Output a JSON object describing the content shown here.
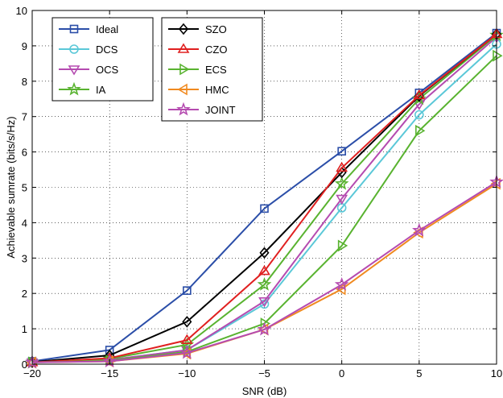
{
  "chart_data": {
    "type": "line",
    "xlabel": "SNR (dB)",
    "ylabel": "Achievable sumrate (bits/s/Hz)",
    "xlim": [
      -20,
      10
    ],
    "ylim": [
      0,
      10
    ],
    "xticks": [
      -20,
      -15,
      -10,
      -5,
      0,
      5,
      10
    ],
    "yticks": [
      0,
      1,
      2,
      3,
      4,
      5,
      6,
      7,
      8,
      9,
      10
    ],
    "xtick_labels": [
      "−20",
      "−15",
      "−10",
      "−5",
      "0",
      "5",
      "10"
    ],
    "ytick_labels": [
      "0",
      "1",
      "2",
      "3",
      "4",
      "5",
      "6",
      "7",
      "8",
      "9",
      "10"
    ],
    "grid": true,
    "legend_placement": "top-left, two boxes",
    "x": [
      -20,
      -15,
      -10,
      -5,
      0,
      5,
      10
    ],
    "series": [
      {
        "name": "Ideal",
        "color": "#2b4ea8",
        "marker": "square",
        "values": [
          0.08,
          0.4,
          2.08,
          4.4,
          6.02,
          7.67,
          9.36
        ]
      },
      {
        "name": "DCS",
        "color": "#5bc8d8",
        "marker": "circle",
        "values": [
          0.05,
          0.12,
          0.4,
          1.7,
          4.42,
          7.05,
          9.05
        ]
      },
      {
        "name": "OCS",
        "color": "#b54bb0",
        "marker": "triangle-down",
        "values": [
          0.05,
          0.12,
          0.4,
          1.78,
          4.68,
          7.35,
          9.25
        ]
      },
      {
        "name": "IA",
        "color": "#59b330",
        "marker": "star",
        "values": [
          0.05,
          0.15,
          0.55,
          2.25,
          5.1,
          7.5,
          9.3
        ]
      },
      {
        "name": "SZO",
        "color": "#000000",
        "marker": "diamond",
        "values": [
          0.06,
          0.25,
          1.2,
          3.15,
          5.42,
          7.58,
          9.33
        ]
      },
      {
        "name": "CZO",
        "color": "#e02020",
        "marker": "triangle-up",
        "values": [
          0.05,
          0.17,
          0.68,
          2.63,
          5.55,
          7.6,
          9.33
        ]
      },
      {
        "name": "ECS",
        "color": "#59b330",
        "marker": "triangle-right",
        "values": [
          0.05,
          0.1,
          0.35,
          1.15,
          3.35,
          6.6,
          8.72
        ]
      },
      {
        "name": "HMC",
        "color": "#f08a20",
        "marker": "triangle-left",
        "values": [
          0.05,
          0.08,
          0.3,
          0.98,
          2.12,
          3.72,
          5.1
        ]
      },
      {
        "name": "JOINT",
        "color": "#b54bb0",
        "marker": "star",
        "values": [
          0.05,
          0.08,
          0.32,
          0.98,
          2.25,
          3.78,
          5.15
        ]
      }
    ]
  }
}
